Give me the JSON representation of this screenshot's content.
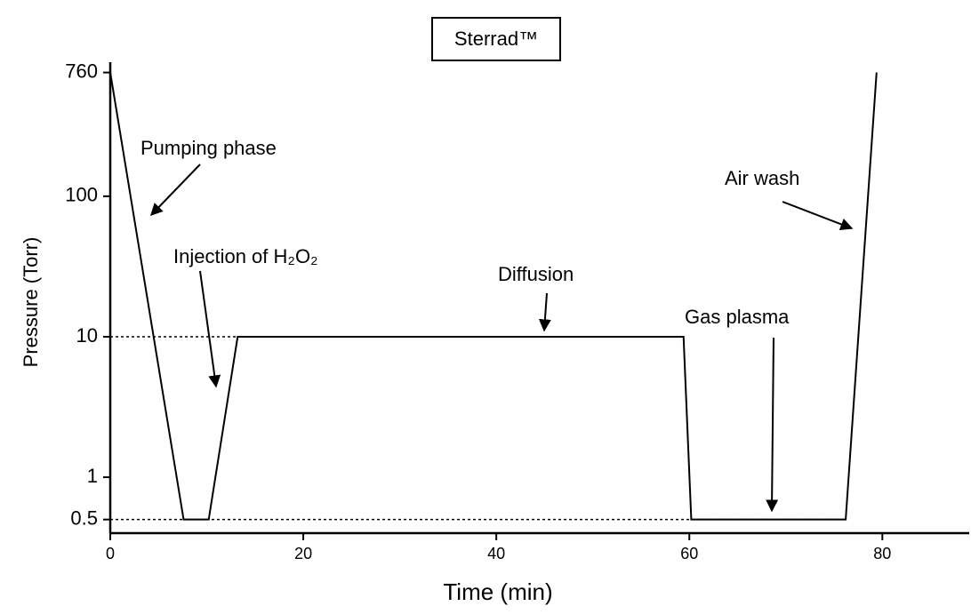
{
  "chart_data": {
    "type": "line",
    "title": "Sterrad™",
    "x_label": "Time (min)",
    "y_label": "Pressure (Torr)",
    "x": [
      0,
      7.6,
      10.2,
      13.2,
      59.4,
      60.2,
      76.2,
      79.4
    ],
    "series": [
      {
        "color": "#000000",
        "values": [
          760,
          0.5,
          0.5,
          10,
          10,
          0.5,
          0.5,
          760
        ]
      }
    ],
    "xlim": [
      0,
      89
    ],
    "xticks": [
      0,
      20,
      40,
      60,
      80
    ],
    "ylim": [
      0.4,
      900
    ],
    "yticks": [
      760,
      100,
      10,
      1,
      0.5
    ],
    "log_y": true,
    "reference_lines": [
      10,
      0.5
    ],
    "annotations": [
      "Pumping phase",
      "Air wash",
      "Injection of H₂O₂",
      "Diffusion",
      "Gas plasma"
    ]
  }
}
